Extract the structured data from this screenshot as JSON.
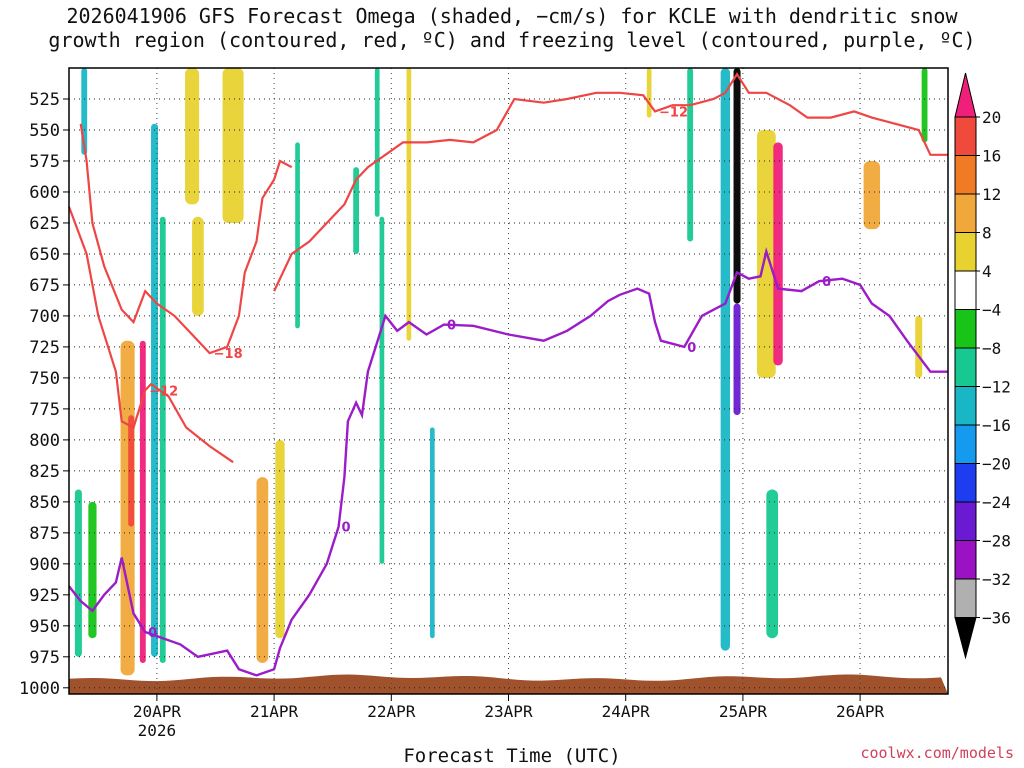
{
  "title": {
    "line1": "2026041906 GFS Forecast Omega (shaded, −cm/s) for KCLE with dendritic snow",
    "line2": "growth region (contoured, red, ºC) and freezing level (contoured, purple, ºC)"
  },
  "credit": "coolwx.com/models",
  "chart_data": {
    "type": "heatmap",
    "title": "2026041906 GFS Forecast Omega (shaded, −cm/s) for KCLE with dendritic snow growth region (contoured, red, ºC) and freezing level (contoured, purple, ºC)",
    "xlabel": "Forecast Time (UTC)",
    "ylabel": "",
    "x_axis": {
      "unit": "forecast date (UTC)",
      "ticks": [
        {
          "t": 0.0,
          "label": "20APR",
          "sub": "2026"
        },
        {
          "t": 1.0,
          "label": "21APR"
        },
        {
          "t": 2.0,
          "label": "22APR"
        },
        {
          "t": 3.0,
          "label": "23APR"
        },
        {
          "t": 4.0,
          "label": "24APR"
        },
        {
          "t": 5.0,
          "label": "25APR"
        },
        {
          "t": 6.0,
          "label": "26APR"
        }
      ],
      "range": [
        -0.75,
        6.75
      ]
    },
    "y_axis": {
      "unit": "hPa",
      "inverted": true,
      "ticks": [
        525,
        550,
        575,
        600,
        625,
        650,
        675,
        700,
        725,
        750,
        775,
        800,
        825,
        850,
        875,
        900,
        925,
        950,
        975,
        1000
      ],
      "range": [
        1000,
        500
      ]
    },
    "grid": true,
    "colorbar": {
      "placement": "right",
      "labels": [
        "20",
        "16",
        "12",
        "8",
        "4",
        "−4",
        "−8",
        "−12",
        "−16",
        "−20",
        "−24",
        "−28",
        "−32",
        "−36"
      ],
      "colors": [
        "#f0207a",
        "#f04a3c",
        "#f07b24",
        "#f0a83a",
        "#e8d230",
        "#ffffff",
        "#17c417",
        "#17c891",
        "#19b7c6",
        "#149bf0",
        "#1e3cf0",
        "#6a1ad2",
        "#9a12c4",
        "#b0b0b0",
        "#000000"
      ]
    },
    "freezing_level": {
      "label": "0",
      "color": "#9b1cc8",
      "points": [
        [
          -0.75,
          918
        ],
        [
          -0.65,
          930
        ],
        [
          -0.55,
          938
        ],
        [
          -0.45,
          925
        ],
        [
          -0.35,
          915
        ],
        [
          -0.3,
          895
        ],
        [
          -0.2,
          940
        ],
        [
          -0.1,
          955
        ],
        [
          0.05,
          960
        ],
        [
          0.2,
          965
        ],
        [
          0.35,
          975
        ],
        [
          0.6,
          970
        ],
        [
          0.7,
          985
        ],
        [
          0.85,
          990
        ],
        [
          1.0,
          985
        ],
        [
          1.05,
          968
        ],
        [
          1.15,
          945
        ],
        [
          1.3,
          925
        ],
        [
          1.45,
          900
        ],
        [
          1.55,
          870
        ],
        [
          1.6,
          830
        ],
        [
          1.63,
          785
        ],
        [
          1.7,
          770
        ],
        [
          1.75,
          780
        ],
        [
          1.8,
          745
        ],
        [
          1.9,
          715
        ],
        [
          1.95,
          700
        ],
        [
          2.05,
          712
        ],
        [
          2.15,
          705
        ],
        [
          2.3,
          715
        ],
        [
          2.45,
          707
        ],
        [
          2.7,
          708
        ],
        [
          3.0,
          715
        ],
        [
          3.3,
          720
        ],
        [
          3.5,
          712
        ],
        [
          3.7,
          700
        ],
        [
          3.85,
          688
        ],
        [
          3.95,
          683
        ],
        [
          4.1,
          678
        ],
        [
          4.2,
          682
        ],
        [
          4.25,
          705
        ],
        [
          4.3,
          720
        ],
        [
          4.5,
          725
        ],
        [
          4.65,
          700
        ],
        [
          4.75,
          695
        ],
        [
          4.85,
          690
        ],
        [
          4.95,
          665
        ],
        [
          5.05,
          670
        ],
        [
          5.15,
          668
        ],
        [
          5.2,
          648
        ],
        [
          5.3,
          678
        ],
        [
          5.5,
          680
        ],
        [
          5.65,
          672
        ],
        [
          5.85,
          670
        ],
        [
          6.0,
          675
        ],
        [
          6.1,
          690
        ],
        [
          6.25,
          700
        ],
        [
          6.4,
          720
        ],
        [
          6.6,
          745
        ],
        [
          6.75,
          745
        ]
      ]
    },
    "snow_growth_contours": {
      "color": "#f04545",
      "contours": [
        {
          "label": "−18",
          "points": [
            [
              -0.65,
              545
            ],
            [
              -0.6,
              575
            ],
            [
              -0.55,
              625
            ],
            [
              -0.45,
              660
            ],
            [
              -0.3,
              695
            ],
            [
              -0.2,
              705
            ],
            [
              -0.1,
              680
            ],
            [
              0.0,
              690
            ],
            [
              0.15,
              700
            ],
            [
              0.3,
              715
            ],
            [
              0.45,
              730
            ],
            [
              0.6,
              725
            ],
            [
              0.7,
              700
            ],
            [
              0.75,
              665
            ],
            [
              0.85,
              640
            ],
            [
              0.9,
              605
            ],
            [
              1.0,
              590
            ],
            [
              1.05,
              575
            ],
            [
              1.15,
              580
            ]
          ]
        },
        {
          "label": "−12",
          "points": [
            [
              -0.75,
              612
            ],
            [
              -0.6,
              650
            ],
            [
              -0.5,
              700
            ],
            [
              -0.35,
              745
            ],
            [
              -0.3,
              785
            ],
            [
              -0.2,
              790
            ],
            [
              -0.1,
              760
            ],
            [
              -0.05,
              755
            ],
            [
              0.1,
              765
            ],
            [
              0.25,
              790
            ],
            [
              0.45,
              805
            ],
            [
              0.65,
              818
            ]
          ]
        },
        {
          "label": "−12",
          "points": [
            [
              1.0,
              680
            ],
            [
              1.15,
              650
            ],
            [
              1.3,
              640
            ],
            [
              1.4,
              630
            ],
            [
              1.5,
              620
            ],
            [
              1.6,
              610
            ],
            [
              1.7,
              590
            ],
            [
              1.8,
              580
            ],
            [
              1.95,
              570
            ],
            [
              2.1,
              560
            ],
            [
              2.3,
              560
            ],
            [
              2.5,
              558
            ],
            [
              2.7,
              560
            ],
            [
              2.9,
              550
            ],
            [
              3.05,
              525
            ],
            [
              3.3,
              528
            ],
            [
              3.5,
              525
            ],
            [
              3.75,
              520
            ],
            [
              3.95,
              520
            ],
            [
              4.15,
              522
            ],
            [
              4.25,
              535
            ],
            [
              4.4,
              530
            ],
            [
              4.55,
              530
            ],
            [
              4.75,
              525
            ],
            [
              4.85,
              520
            ],
            [
              4.95,
              505
            ],
            [
              5.05,
              520
            ],
            [
              5.2,
              520
            ],
            [
              5.4,
              530
            ],
            [
              5.55,
              540
            ],
            [
              5.75,
              540
            ],
            [
              5.95,
              535
            ],
            [
              6.1,
              540
            ],
            [
              6.3,
              545
            ],
            [
              6.5,
              550
            ],
            [
              6.6,
              570
            ],
            [
              6.75,
              570
            ]
          ]
        }
      ]
    },
    "omega_cells": [
      {
        "t": -0.67,
        "w": 0.06,
        "p0": 840,
        "p1": 975,
        "v": -10
      },
      {
        "t": -0.62,
        "w": 0.05,
        "p0": 500,
        "p1": 570,
        "v": -14
      },
      {
        "t": -0.55,
        "w": 0.07,
        "p0": 850,
        "p1": 960,
        "v": -7
      },
      {
        "t": -0.25,
        "w": 0.12,
        "p0": 720,
        "p1": 990,
        "v": 10
      },
      {
        "t": -0.22,
        "w": 0.05,
        "p0": 780,
        "p1": 870,
        "v": 16
      },
      {
        "t": -0.12,
        "w": 0.05,
        "p0": 720,
        "p1": 980,
        "v": 20
      },
      {
        "t": -0.02,
        "w": 0.06,
        "p0": 545,
        "p1": 975,
        "v": -14
      },
      {
        "t": 0.05,
        "w": 0.05,
        "p0": 620,
        "p1": 980,
        "v": -8
      },
      {
        "t": 0.3,
        "w": 0.12,
        "p0": 500,
        "p1": 610,
        "v": 5
      },
      {
        "t": 0.35,
        "w": 0.1,
        "p0": 620,
        "p1": 700,
        "v": 5
      },
      {
        "t": 0.65,
        "w": 0.18,
        "p0": 500,
        "p1": 625,
        "v": 5
      },
      {
        "t": 0.9,
        "w": 0.1,
        "p0": 830,
        "p1": 980,
        "v": 8
      },
      {
        "t": 1.05,
        "w": 0.08,
        "p0": 800,
        "p1": 960,
        "v": 5
      },
      {
        "t": 1.2,
        "w": 0.04,
        "p0": 560,
        "p1": 710,
        "v": -9
      },
      {
        "t": 1.7,
        "w": 0.05,
        "p0": 580,
        "p1": 650,
        "v": -8
      },
      {
        "t": 1.88,
        "w": 0.04,
        "p0": 500,
        "p1": 620,
        "v": -9
      },
      {
        "t": 2.15,
        "w": 0.04,
        "p0": 500,
        "p1": 720,
        "v": 6
      },
      {
        "t": 1.92,
        "w": 0.04,
        "p0": 620,
        "p1": 900,
        "v": -9
      },
      {
        "t": 2.35,
        "w": 0.04,
        "p0": 790,
        "p1": 960,
        "v": -12
      },
      {
        "t": 4.2,
        "w": 0.04,
        "p0": 500,
        "p1": 540,
        "v": 5
      },
      {
        "t": 4.55,
        "w": 0.05,
        "p0": 500,
        "p1": 640,
        "v": -9
      },
      {
        "t": 4.85,
        "w": 0.08,
        "p0": 500,
        "p1": 970,
        "v": -14
      },
      {
        "t": 4.95,
        "w": 0.06,
        "p0": 500,
        "p1": 690,
        "v": -40
      },
      {
        "t": 4.95,
        "w": 0.06,
        "p0": 690,
        "p1": 780,
        "v": -26
      },
      {
        "t": 5.2,
        "w": 0.16,
        "p0": 550,
        "p1": 750,
        "v": 6
      },
      {
        "t": 5.3,
        "w": 0.08,
        "p0": 560,
        "p1": 740,
        "v": 20
      },
      {
        "t": 5.25,
        "w": 0.1,
        "p0": 840,
        "p1": 960,
        "v": -9
      },
      {
        "t": 6.1,
        "w": 0.14,
        "p0": 575,
        "p1": 630,
        "v": 8
      },
      {
        "t": 6.55,
        "w": 0.05,
        "p0": 500,
        "p1": 560,
        "v": -7
      },
      {
        "t": 6.5,
        "w": 0.06,
        "p0": 700,
        "p1": 750,
        "v": 5
      }
    ],
    "terrain": {
      "color": "#a0522d",
      "surface_hPa": 992
    }
  }
}
